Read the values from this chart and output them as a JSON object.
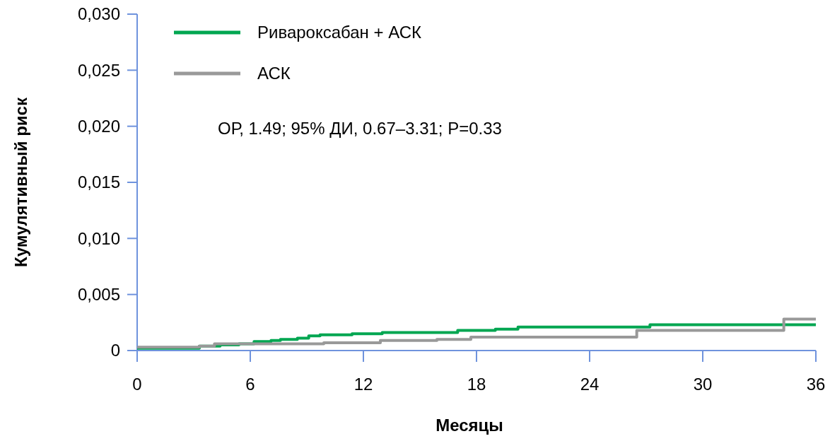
{
  "chart_data": {
    "type": "step",
    "xlabel": "Месяцы",
    "ylabel": "Кумулятивный риск",
    "xlim": [
      0,
      36
    ],
    "xticks": [
      0,
      6,
      12,
      18,
      24,
      30,
      36
    ],
    "ylim": [
      0,
      0.03
    ],
    "yticks": [
      {
        "value": 0,
        "label": "0"
      },
      {
        "value": 0.005,
        "label": "0,005"
      },
      {
        "value": 0.01,
        "label": "0,010"
      },
      {
        "value": 0.015,
        "label": "0,015"
      },
      {
        "value": 0.02,
        "label": "0,020"
      },
      {
        "value": 0.025,
        "label": "0,025"
      },
      {
        "value": 0.03,
        "label": "0,030"
      }
    ],
    "series": [
      {
        "name": "Ривароксабан + АСК",
        "color": "#00a651",
        "x": [
          0,
          3.3,
          4.4,
          5.4,
          6.2,
          7.1,
          7.6,
          8.5,
          9.1,
          9.7,
          11.4,
          13.0,
          17.0,
          19.0,
          20.2,
          27.2,
          36
        ],
        "values": [
          0.0002,
          0.0004,
          0.0005,
          0.0006,
          0.0008,
          0.0009,
          0.001,
          0.0011,
          0.0013,
          0.0014,
          0.0015,
          0.0016,
          0.0018,
          0.0019,
          0.0021,
          0.0023,
          0.0023
        ]
      },
      {
        "name": "АСК",
        "color": "#999999",
        "x": [
          0,
          3.3,
          4.1,
          9.9,
          12.9,
          15.9,
          17.7,
          26.5,
          34.3,
          36
        ],
        "values": [
          0.0003,
          0.0004,
          0.0006,
          0.0007,
          0.0009,
          0.001,
          0.0012,
          0.0018,
          0.0028,
          0.0028
        ]
      }
    ],
    "legend": "top left",
    "grid": false,
    "annotations": [
      "ОР, 1.49; 95% ДИ, 0.67–3.31; P=0.33"
    ]
  }
}
